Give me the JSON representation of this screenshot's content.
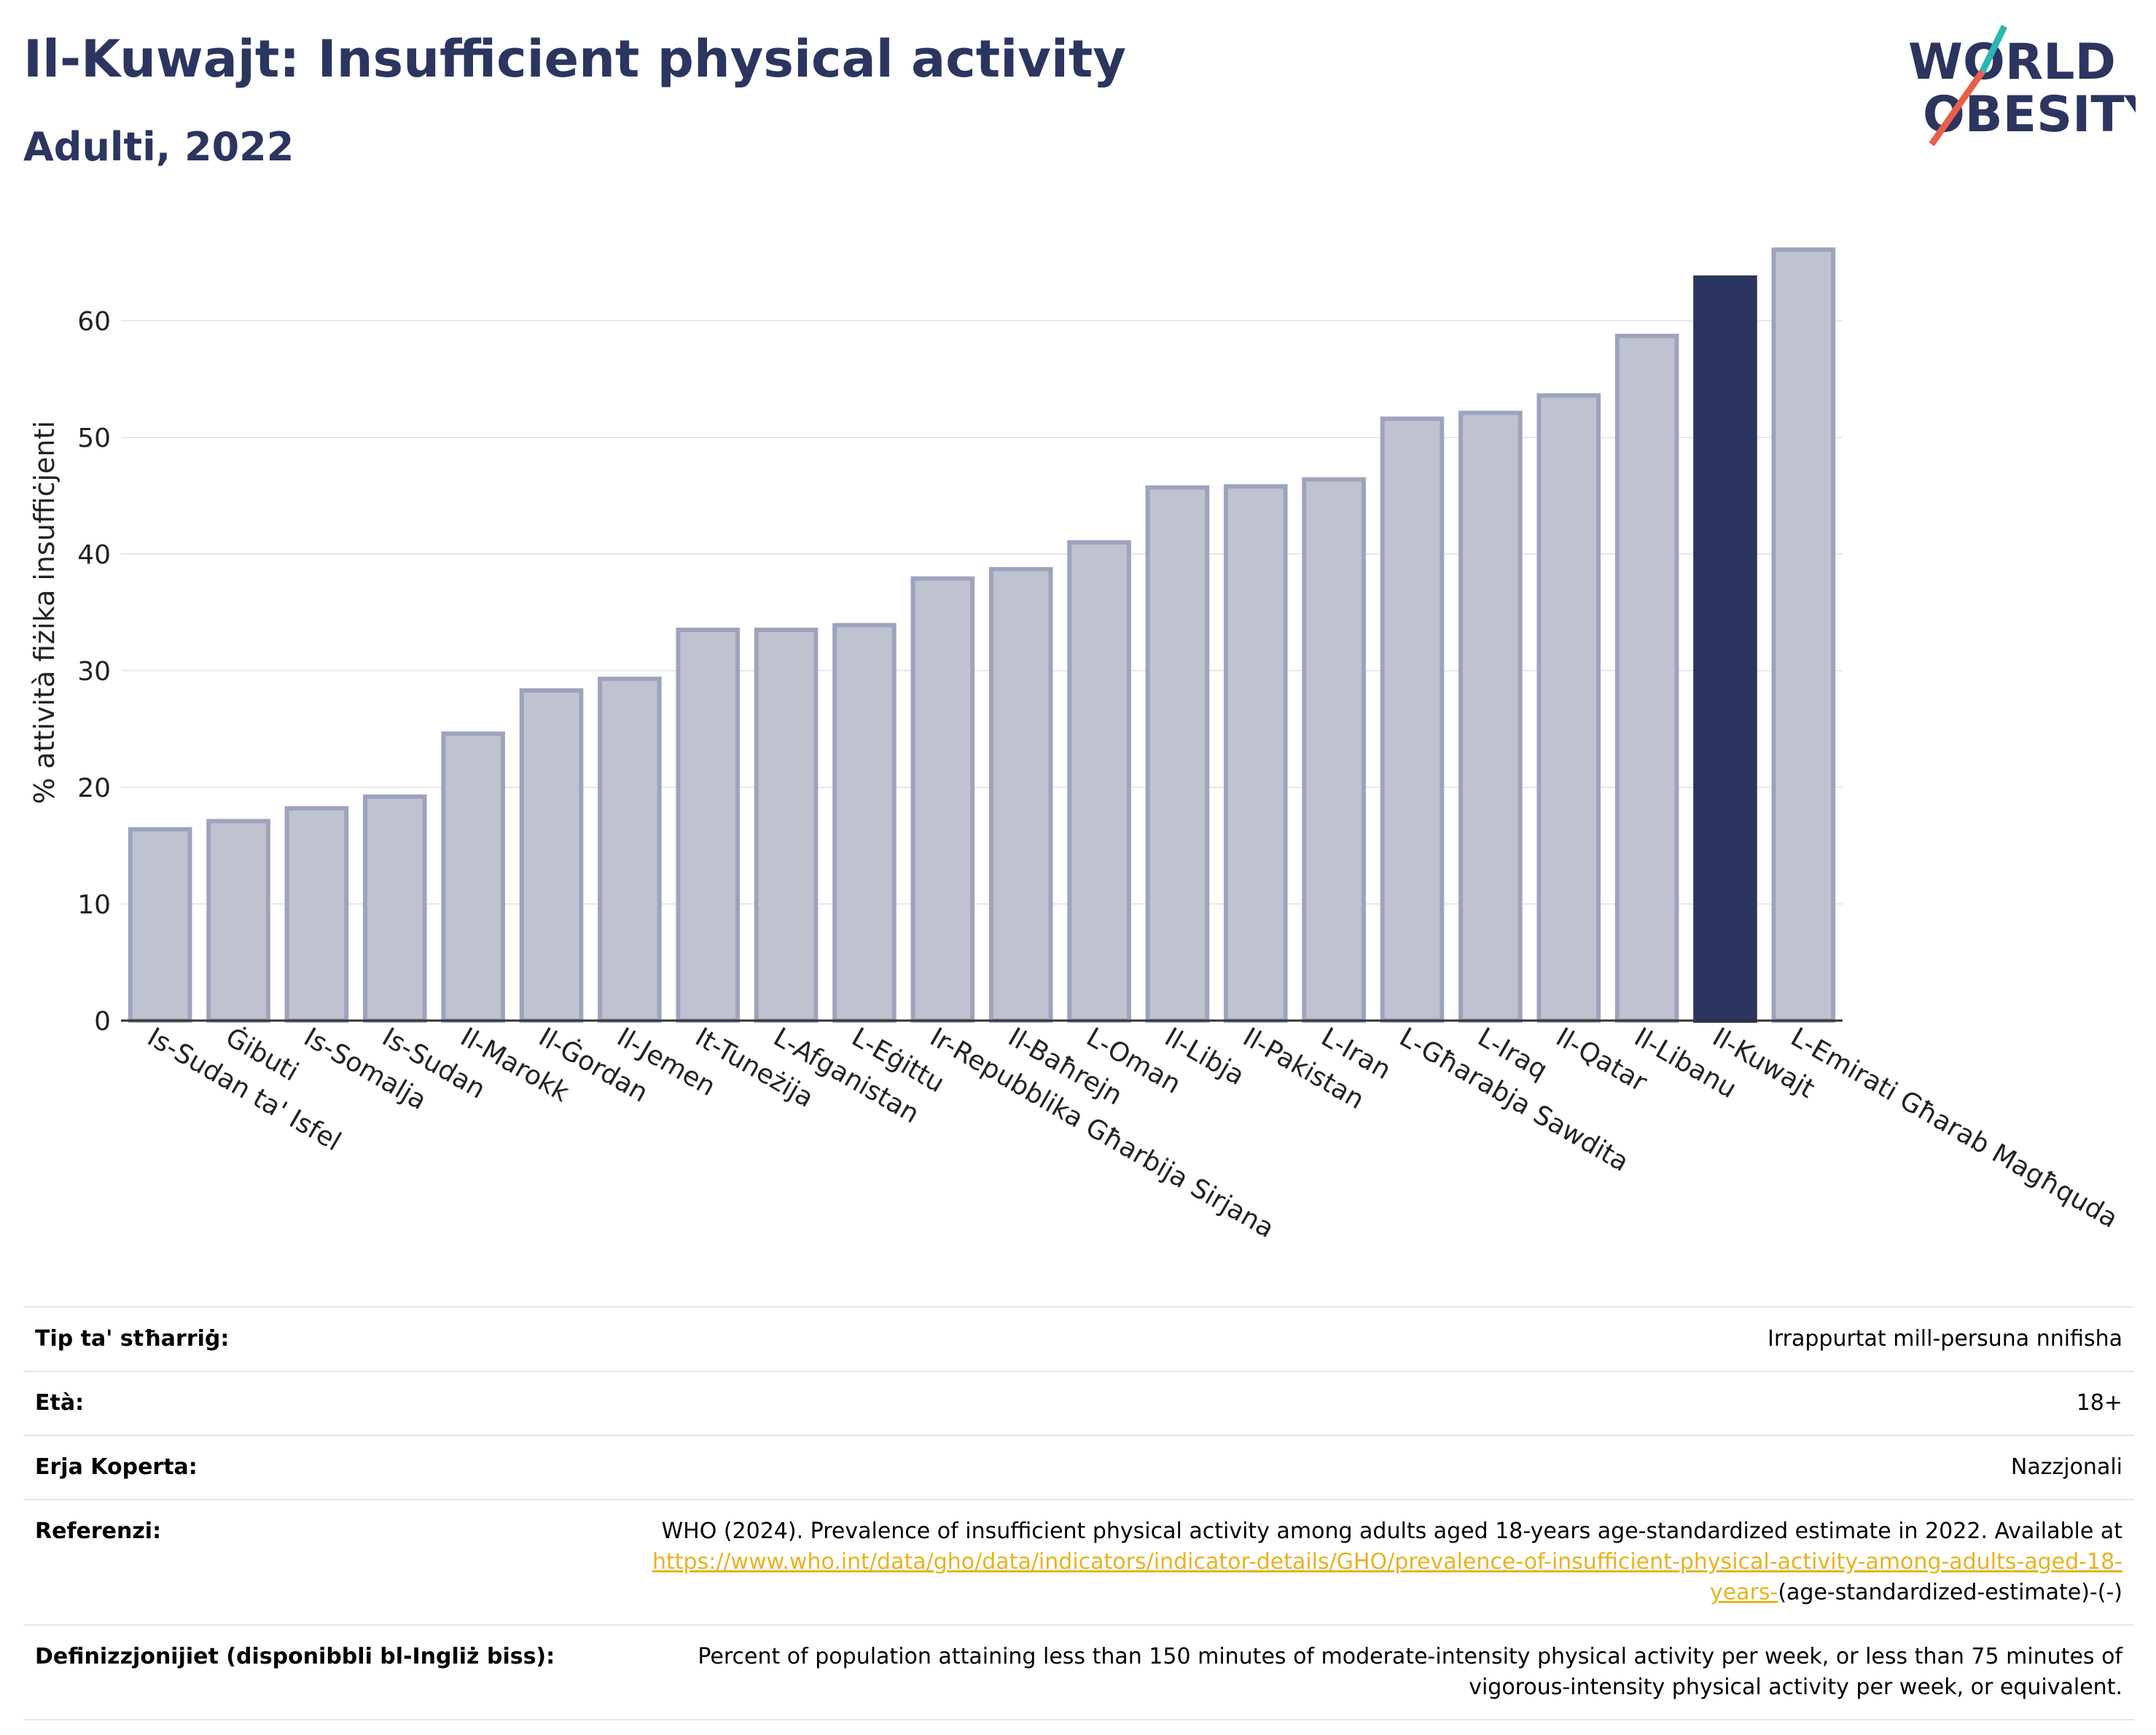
{
  "header": {
    "title": "Il-Kuwajt: Insufficient physical activity",
    "subtitle": "Adulti, 2022"
  },
  "logo": {
    "line1": "WORLD",
    "line2": "OBESITY"
  },
  "colors": {
    "highlight": "#2b3560",
    "bar": "#bfc3d0",
    "bar_edge": "#9ea3bd",
    "link": "#e8b21f"
  },
  "chart_data": {
    "type": "bar",
    "title": "Il-Kuwajt: Insufficient physical activity",
    "subtitle": "Adulti, 2022",
    "xlabel": "",
    "ylabel": "% attività fiżika insuffiċjenti",
    "ylim": [
      0,
      70
    ],
    "yticks": [
      0,
      10,
      20,
      30,
      40,
      50,
      60
    ],
    "grid": true,
    "highlight": "Il-Kuwajt",
    "categories": [
      "Is-Sudan ta' Isfel",
      "Ġibuti",
      "Is-Somalja",
      "Is-Sudan",
      "Il-Marokk",
      "Il-Ġordan",
      "Il-Jemen",
      "It-Tuneżija",
      "L-Afganistan",
      "L-Eġittu",
      "Ir-Repubblika Għarbija Sirjana",
      "Il-Baħrejn",
      "L-Oman",
      "Il-Libja",
      "Il-Pakistan",
      "L-Iran",
      "L-Għarabja Sawdita",
      "L-Iraq",
      "Il-Qatar",
      "Il-Libanu",
      "Il-Kuwajt",
      "L-Emirati Għarab Magħquda"
    ],
    "values": [
      16.4,
      17.1,
      18.2,
      19.2,
      24.6,
      28.3,
      29.3,
      33.5,
      33.5,
      33.9,
      37.9,
      38.7,
      41.0,
      45.7,
      45.8,
      46.4,
      51.6,
      52.1,
      53.6,
      58.7,
      63.7,
      66.1
    ]
  },
  "info_table": [
    {
      "label": "Tip ta' stħarriġ:",
      "value": "Irrappurtat mill-persuna nnifisha"
    },
    {
      "label": "Età:",
      "value": "18+"
    },
    {
      "label": "Erja Koperta:",
      "value": "Nazzjonali"
    }
  ],
  "references": {
    "label": "Referenzi:",
    "text": "WHO (2024). Prevalence of insufficient physical activity among adults aged 18-years age-standardized estimate in 2022. Available at",
    "link": "https://www.who.int/data/gho/data/indicators/indicator-details/GHO/prevalence-of-insufficient-physical-activity-among-adults-aged-18-years-",
    "suffix": "(age-standardized-estimate)-(-)"
  },
  "definitions": {
    "label": "Definizzjonijiet (disponibbli bl-Ingliż biss):",
    "text": "Percent of population attaining less than 150 minutes of moderate-intensity physical activity per week, or less than 75 minutes of vigorous-intensity physical activity per week, or equivalent."
  }
}
